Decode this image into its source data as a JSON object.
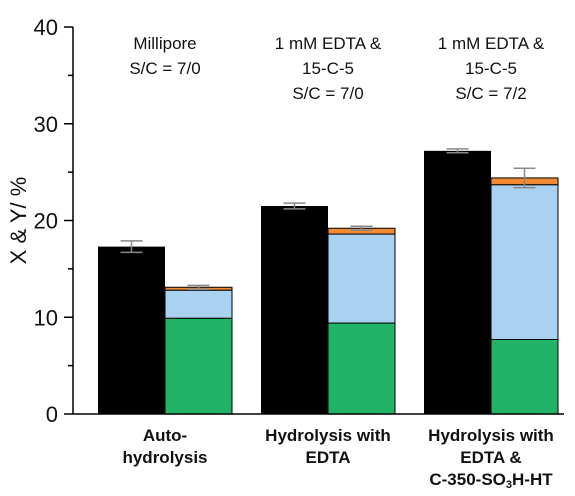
{
  "chart_data": {
    "type": "bar",
    "ylabel": "X & Y/ %",
    "ylim": [
      0,
      40
    ],
    "y_ticks": [
      0,
      10,
      20,
      30,
      40
    ],
    "grid": false,
    "legend": "none",
    "categories": [
      {
        "lines": [
          "Auto-",
          "hydrolysis"
        ]
      },
      {
        "lines": [
          "Hydrolysis with",
          "EDTA"
        ]
      },
      {
        "lines": [
          "Hydrolysis with",
          "EDTA &",
          "C-350-SO{3}H-HT"
        ]
      }
    ],
    "annotations": [
      {
        "category": 0,
        "lines": [
          "Millipore",
          "S/C = 7/0"
        ]
      },
      {
        "category": 1,
        "lines": [
          "1 mM EDTA &",
          "15-C-5",
          "S/C = 7/0"
        ]
      },
      {
        "category": 2,
        "lines": [
          "1 mM EDTA &",
          "15-C-5",
          "S/C = 7/2"
        ]
      }
    ],
    "conversion_bar": {
      "color": "#000000",
      "values": [
        17.3,
        21.5,
        27.2
      ],
      "errors": [
        0.6,
        0.3,
        0.2
      ]
    },
    "yield_stack": {
      "layers": [
        {
          "color": "#21b468",
          "values": [
            9.9,
            9.4,
            7.7
          ]
        },
        {
          "color": "#a9d2f0",
          "values": [
            2.9,
            9.2,
            16.0
          ]
        },
        {
          "color": "#f28a33",
          "values": [
            0.3,
            0.6,
            0.7
          ]
        }
      ],
      "totals": [
        13.1,
        19.2,
        24.4
      ],
      "errors": [
        0.2,
        0.2,
        1.0
      ]
    },
    "error_bar_color": "#888888"
  }
}
